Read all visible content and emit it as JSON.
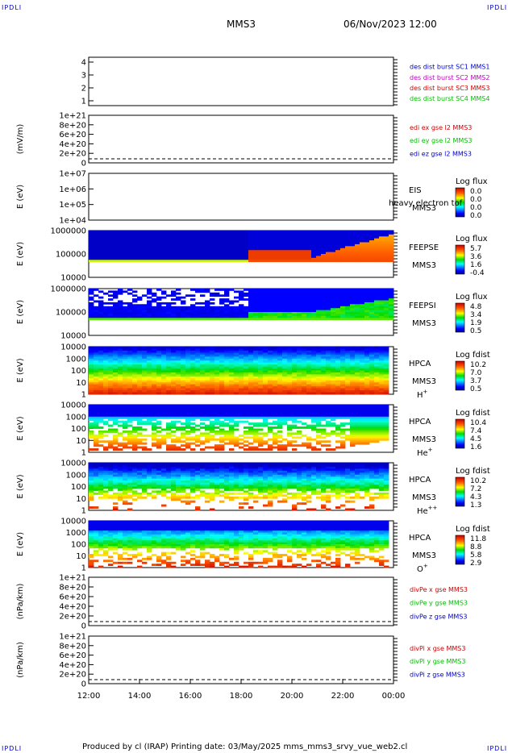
{
  "header": {
    "corner_tag": "IPDLI",
    "spacecraft": "MMS3",
    "datetime": "06/Nov/2023 12:00"
  },
  "footer": {
    "text": "Produced by cl (IRAP)   Printing date: 03/May/2025   mms_mms3_srvy_vue_web2.cl"
  },
  "colors": {
    "blue": "#0000c8",
    "magenta": "#c000c0",
    "red": "#d00000",
    "green": "#00c000"
  },
  "chart_data": [
    {
      "type": "line",
      "ylabel": "",
      "yticks": [
        "4",
        "3",
        "2",
        "1"
      ],
      "legend": [
        {
          "text": "des dist burst SC1 MMS1",
          "color": "#0000c8"
        },
        {
          "text": "des dist burst SC2 MMS2",
          "color": "#c000c0"
        },
        {
          "text": "des dist burst SC3 MMS3",
          "color": "#d00000"
        },
        {
          "text": "des dist burst SC4 MMS4",
          "color": "#00c000"
        }
      ]
    },
    {
      "type": "line",
      "ylabel": "(mV/m)",
      "yticks": [
        "1e+21",
        "8e+20",
        "6e+20",
        "4e+20",
        "2e+20",
        "0"
      ],
      "zero_line": true,
      "legend": [
        {
          "text": "edi ex gse l2 MMS3",
          "color": "#d00000"
        },
        {
          "text": "edi ey gse l2 MMS3",
          "color": "#00c000"
        },
        {
          "text": "edi ez gse l2 MMS3",
          "color": "#0000c8"
        }
      ]
    },
    {
      "type": "heatmap",
      "ylabel": "E (eV)",
      "yticks": [
        "1e+07",
        "1e+06",
        "1e+05",
        "1e+04"
      ],
      "instrument": [
        "EIS",
        "MMS3"
      ],
      "overlay_text": "heavy electron tof",
      "colorbar_title": "Log flux",
      "colorbar_ticks": [
        "0.0",
        "0.0",
        "0.0",
        "0.0"
      ]
    },
    {
      "type": "heatmap",
      "ylabel": "E (eV)",
      "yticks": [
        "1000000",
        "100000",
        "10000"
      ],
      "instrument": [
        "FEEPSE",
        "MMS3"
      ],
      "colorbar_title": "Log flux",
      "colorbar_ticks": [
        "5.7",
        "3.6",
        "1.6",
        "-0.4"
      ]
    },
    {
      "type": "heatmap",
      "ylabel": "E (eV)",
      "yticks": [
        "1000000",
        "100000",
        "10000"
      ],
      "instrument": [
        "FEEPSI",
        "MMS3"
      ],
      "colorbar_title": "Log flux",
      "colorbar_ticks": [
        "4.8",
        "3.4",
        "1.9",
        "0.5"
      ]
    },
    {
      "type": "heatmap",
      "ylabel": "E (eV)",
      "yticks": [
        "10000",
        "1000",
        "100",
        "10",
        "1"
      ],
      "instrument": [
        "HPCA",
        "MMS3"
      ],
      "species": "H",
      "species_sup": "+",
      "colorbar_title": "Log fdist",
      "colorbar_ticks": [
        "10.2",
        "7.0",
        "3.7",
        "0.5"
      ]
    },
    {
      "type": "heatmap",
      "ylabel": "E (eV)",
      "yticks": [
        "10000",
        "1000",
        "100",
        "10",
        "1"
      ],
      "instrument": [
        "HPCA",
        "MMS3"
      ],
      "species": "He",
      "species_sup": "+",
      "colorbar_title": "Log fdist",
      "colorbar_ticks": [
        "10.4",
        "7.4",
        "4.5",
        "1.6"
      ]
    },
    {
      "type": "heatmap",
      "ylabel": "E (eV)",
      "yticks": [
        "10000",
        "1000",
        "100",
        "10",
        "1"
      ],
      "instrument": [
        "HPCA",
        "MMS3"
      ],
      "species": "He",
      "species_sup": "++",
      "colorbar_title": "Log fdist",
      "colorbar_ticks": [
        "10.2",
        "7.2",
        "4.3",
        "1.3"
      ]
    },
    {
      "type": "heatmap",
      "ylabel": "E (eV)",
      "yticks": [
        "10000",
        "1000",
        "100",
        "10",
        "1"
      ],
      "instrument": [
        "HPCA",
        "MMS3"
      ],
      "species": "O",
      "species_sup": "+",
      "colorbar_title": "Log fdist",
      "colorbar_ticks": [
        "11.8",
        "8.8",
        "5.8",
        "2.9"
      ]
    },
    {
      "type": "line",
      "ylabel": "(nPa/km)",
      "yticks": [
        "1e+21",
        "8e+20",
        "6e+20",
        "4e+20",
        "2e+20",
        "0"
      ],
      "zero_line": true,
      "legend": [
        {
          "text": "divPe x gse MMS3",
          "color": "#d00000"
        },
        {
          "text": "divPe y gse MMS3",
          "color": "#00c000"
        },
        {
          "text": "divPe z gse MMS3",
          "color": "#0000c8"
        }
      ]
    },
    {
      "type": "line",
      "ylabel": "(nPa/km)",
      "yticks": [
        "1e+21",
        "8e+20",
        "6e+20",
        "4e+20",
        "2e+20",
        "0"
      ],
      "zero_line": true,
      "legend": [
        {
          "text": "divPi x gse MMS3",
          "color": "#d00000"
        },
        {
          "text": "divPi y gse MMS3",
          "color": "#00c000"
        },
        {
          "text": "divPi z gse MMS3",
          "color": "#0000c8"
        }
      ]
    }
  ],
  "xaxis": {
    "ticks": [
      "12:00",
      "14:00",
      "16:00",
      "18:00",
      "20:00",
      "22:00",
      "00:00"
    ]
  }
}
